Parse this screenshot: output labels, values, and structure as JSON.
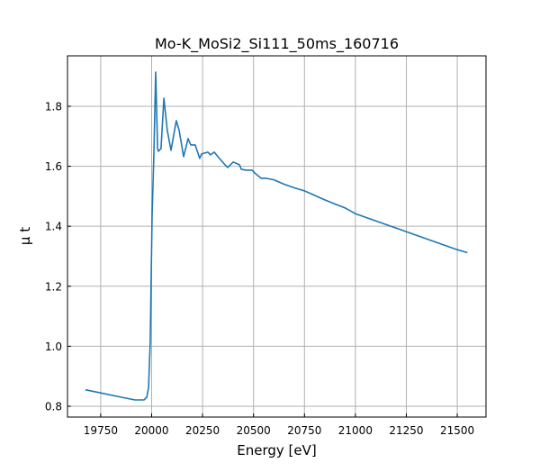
{
  "chart_data": {
    "type": "line",
    "title": "Mo-K_MoSi2_Si111_50ms_160716",
    "xlabel": "Energy [eV]",
    "ylabel": "μ t",
    "xlim": [
      19587,
      21641
    ],
    "ylim": [
      0.764,
      1.968
    ],
    "xticks": [
      19750,
      20000,
      20250,
      20500,
      20750,
      21000,
      21250,
      21500
    ],
    "yticks": [
      0.8,
      1.0,
      1.2,
      1.4,
      1.6,
      1.8
    ],
    "grid": true,
    "color": "#1f77b4",
    "series": [
      {
        "name": "mu_t",
        "x": [
          19675,
          19830,
          19918,
          19962,
          19976,
          19985,
          19993,
          20002,
          20011,
          20020,
          20029,
          20033,
          20046,
          20060,
          20077,
          20095,
          20121,
          20135,
          20157,
          20179,
          20192,
          20214,
          20236,
          20245,
          20276,
          20289,
          20307,
          20329,
          20356,
          20373,
          20400,
          20431,
          20440,
          20466,
          20493,
          20510,
          20537,
          20560,
          20600,
          20650,
          20700,
          20750,
          20800,
          20850,
          20900,
          20950,
          21000,
          21100,
          21200,
          21300,
          21400,
          21500,
          21550
        ],
        "y": [
          0.855,
          0.833,
          0.821,
          0.821,
          0.83,
          0.863,
          1.013,
          1.434,
          1.644,
          1.914,
          1.659,
          1.65,
          1.659,
          1.827,
          1.719,
          1.653,
          1.752,
          1.719,
          1.632,
          1.692,
          1.671,
          1.671,
          1.626,
          1.641,
          1.647,
          1.638,
          1.647,
          1.629,
          1.608,
          1.596,
          1.614,
          1.605,
          1.59,
          1.587,
          1.587,
          1.575,
          1.56,
          1.56,
          1.555,
          1.54,
          1.528,
          1.518,
          1.503,
          1.488,
          1.474,
          1.461,
          1.442,
          1.418,
          1.394,
          1.37,
          1.346,
          1.322,
          1.312
        ]
      }
    ]
  }
}
